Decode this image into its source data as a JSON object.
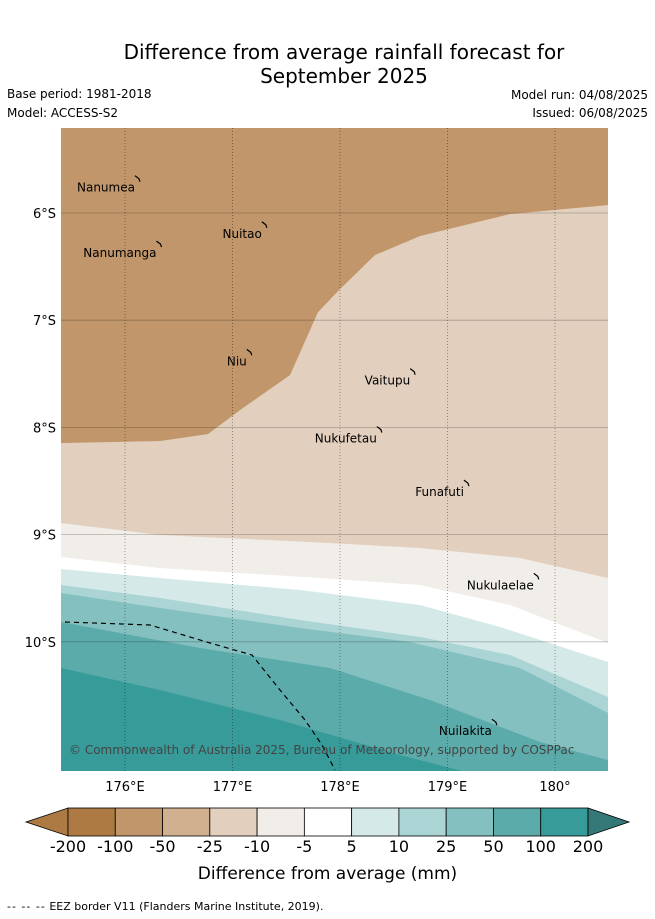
{
  "title_line1": "Difference from average rainfall forecast for",
  "title_line2": "September 2025",
  "base_period": "Base period: 1981-2018",
  "model": "Model: ACCESS-S2",
  "model_run": "Model run: 04/08/2025",
  "issued": "Issued: 06/08/2025",
  "copyright": "© Commonwealth of Australia 2025, Bureau of Meteorology, supported by COSPPac",
  "lat_labels": [
    {
      "text": "6°S",
      "lat": -6
    },
    {
      "text": "7°S",
      "lat": -7
    },
    {
      "text": "8°S",
      "lat": -8
    },
    {
      "text": "9°S",
      "lat": -9
    },
    {
      "text": "10°S",
      "lat": -10
    }
  ],
  "lon_labels": [
    {
      "text": "176°E",
      "lon": 176
    },
    {
      "text": "177°E",
      "lon": 177
    },
    {
      "text": "178°E",
      "lon": 178
    },
    {
      "text": "179°E",
      "lon": 179
    },
    {
      "text": "180°",
      "lon": 180
    }
  ],
  "islands": [
    {
      "name": "Nanumea",
      "lon": 176.13,
      "lat": -5.68
    },
    {
      "name": "Nuitao",
      "lon": 177.31,
      "lat": -6.11
    },
    {
      "name": "Nanumanga",
      "lon": 176.33,
      "lat": -6.29
    },
    {
      "name": "Niu",
      "lon": 177.17,
      "lat": -7.3
    },
    {
      "name": "Vaitupu",
      "lon": 178.69,
      "lat": -7.48
    },
    {
      "name": "Nukufetau",
      "lon": 178.38,
      "lat": -8.02
    },
    {
      "name": "Funafuti",
      "lon": 179.19,
      "lat": -8.52
    },
    {
      "name": "Nukulaelae",
      "lon": 179.84,
      "lat": -9.39
    },
    {
      "name": "Nuilakita",
      "lon": 179.45,
      "lat": -10.75
    }
  ],
  "colorbar": {
    "title": "Difference from average (mm)",
    "labels": [
      "-200",
      "-100",
      "-50",
      "-25",
      "-10",
      "-5",
      "5",
      "10",
      "25",
      "50",
      "100",
      "200"
    ],
    "colors": [
      "#ae7a43",
      "#ae7a43",
      "#c0966a",
      "#d1b090",
      "#e2cfbe",
      "#f1ede8",
      "#ffffff",
      "#d5e9e8",
      "#abd4d4",
      "#84c0c0",
      "#5cabab",
      "#379b9a",
      "#357878"
    ]
  },
  "footnote_dashes": "-- -- --",
  "footnote": "EEZ border V11 (Flanders Marine Institute, 2019)."
}
